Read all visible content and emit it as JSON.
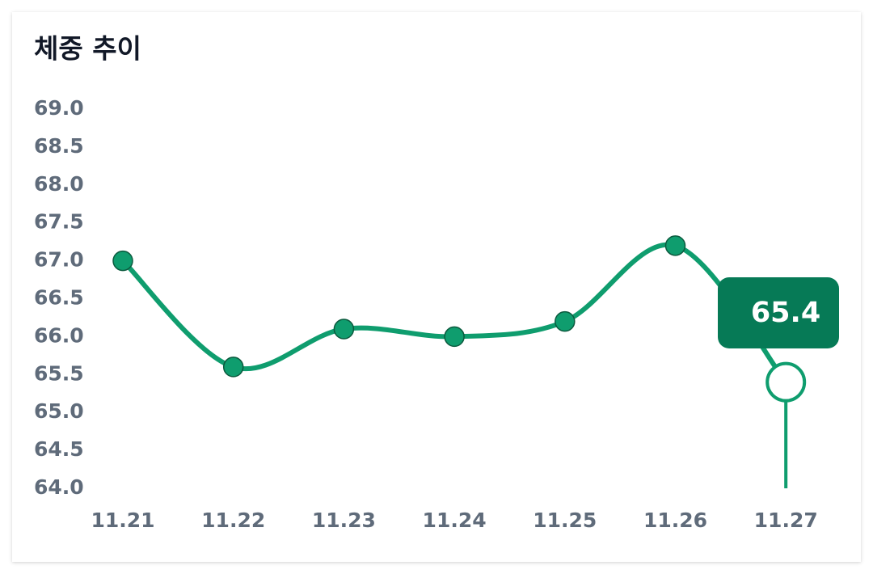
{
  "chart_data": {
    "type": "line",
    "title": "체중 추이",
    "categories": [
      "11.21",
      "11.22",
      "11.23",
      "11.24",
      "11.25",
      "11.26",
      "11.27"
    ],
    "values": [
      67.0,
      65.6,
      66.1,
      66.0,
      66.2,
      67.2,
      65.4
    ],
    "color": "#0f9d6e",
    "ylim": [
      64,
      69
    ],
    "yticks": [
      {
        "value": 64,
        "label": "64.0"
      },
      64.5,
      {
        "value": 65,
        "label": "65.0"
      },
      65.5,
      {
        "value": 66,
        "label": "66.0"
      },
      66.5,
      {
        "value": 67,
        "label": "67.0"
      },
      67.5,
      {
        "value": 68,
        "label": "68.0"
      },
      68.5,
      {
        "value": 69,
        "label": "69.0"
      }
    ],
    "grid": false
  }
}
